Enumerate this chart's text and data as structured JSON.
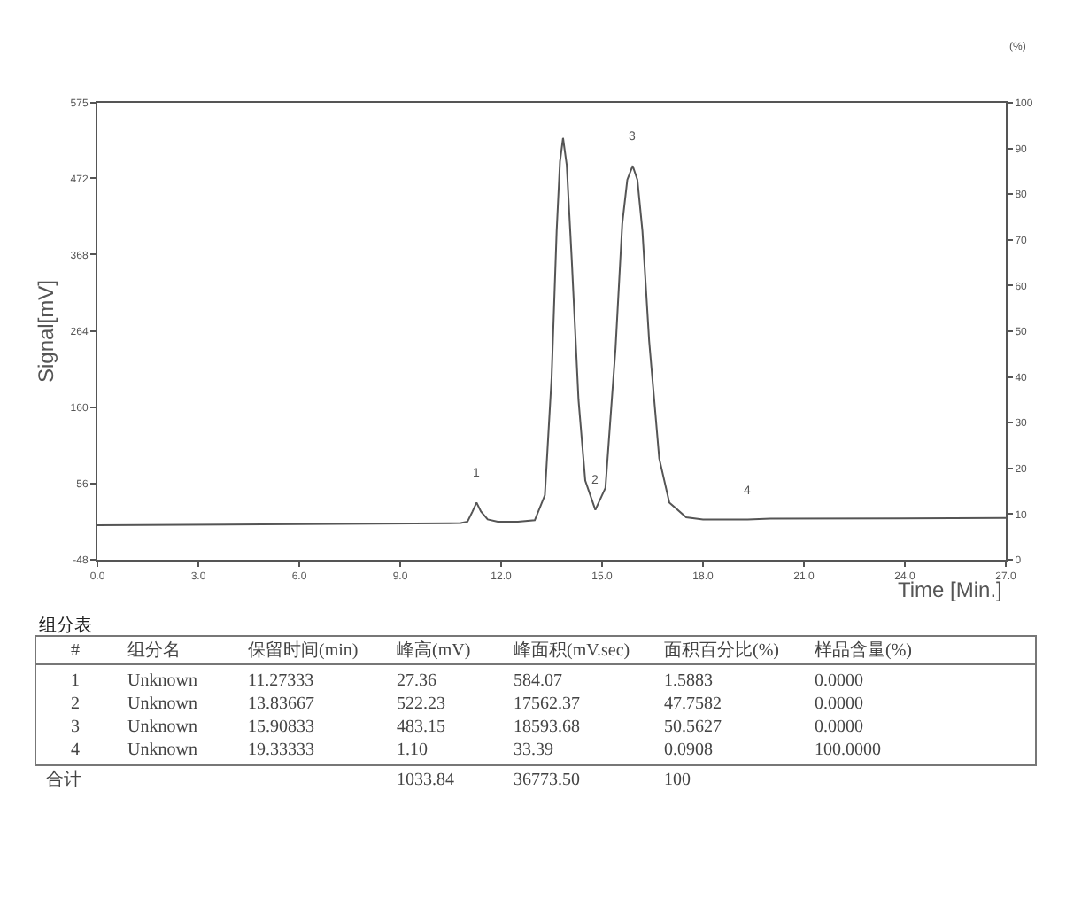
{
  "chart_data": {
    "type": "line",
    "xlabel": "Time [Min.]",
    "ylabel": "Signal[mV]",
    "y2label": "(%)",
    "xlim": [
      0,
      27
    ],
    "ylim": [
      -48,
      575
    ],
    "y2lim": [
      0,
      100
    ],
    "xticks": [
      {
        "value": 0,
        "label": "0.0"
      },
      {
        "value": 3,
        "label": "3.0"
      },
      {
        "value": 6,
        "label": "6.0"
      },
      {
        "value": 9,
        "label": "9.0"
      },
      {
        "value": 12,
        "label": "12.0"
      },
      {
        "value": 15,
        "label": "15.0"
      },
      {
        "value": 18,
        "label": "18.0"
      },
      {
        "value": 21,
        "label": "21.0"
      },
      {
        "value": 24,
        "label": "24.0"
      },
      {
        "value": 27,
        "label": "27.0"
      }
    ],
    "yticks": [
      -48,
      56,
      160,
      264,
      368,
      472,
      575
    ],
    "y2ticks": [
      0,
      10,
      20,
      30,
      40,
      50,
      60,
      70,
      80,
      90,
      100
    ],
    "marker": "none",
    "line_style": "solid",
    "series": [
      {
        "color": "#555555",
        "x": [
          0,
          10.8,
          11.0,
          11.15,
          11.27,
          11.4,
          11.6,
          11.9,
          12.5,
          13.0,
          13.3,
          13.5,
          13.65,
          13.75,
          13.84,
          13.95,
          14.1,
          14.3,
          14.5,
          14.8,
          15.1,
          15.4,
          15.6,
          15.75,
          15.91,
          16.05,
          16.2,
          16.4,
          16.7,
          17.0,
          17.5,
          18.0,
          19.33,
          20,
          27
        ],
        "values": [
          -1,
          2,
          4,
          18,
          30,
          18,
          7,
          4,
          4,
          6,
          40,
          200,
          400,
          495,
          527,
          490,
          360,
          170,
          60,
          20,
          50,
          240,
          410,
          470,
          489,
          470,
          400,
          250,
          90,
          30,
          10,
          7,
          7,
          8,
          9
        ]
      }
    ],
    "annotations": [
      {
        "text": "1",
        "x": 11.27,
        "y": 30
      },
      {
        "text": "2",
        "x": 14.8,
        "y": 20
      },
      {
        "text": "3",
        "x": 15.91,
        "y": 489
      },
      {
        "text": "4",
        "x": 19.33,
        "y": 7
      },
      "组分表",
      "#",
      "组分名",
      "保留时间(min)",
      "峰高(mV)",
      "峰面积(mV.sec)",
      "面积百分比(%)",
      "样品含量(%)",
      "1",
      "Unknown",
      "11.27333",
      "27.36",
      "584.07",
      "1.5883",
      "0.0000",
      "2",
      "Unknown",
      "13.83667",
      "522.23",
      "17562.37",
      "47.7582",
      "0.0000",
      "3",
      "Unknown",
      "15.90833",
      "483.15",
      "18593.68",
      "50.5627",
      "0.0000",
      "4",
      "Unknown",
      "19.33333",
      "1.10",
      "33.39",
      "0.0908",
      "100.0000",
      "合计",
      "1033.84",
      "36773.50",
      "100"
    ]
  }
}
